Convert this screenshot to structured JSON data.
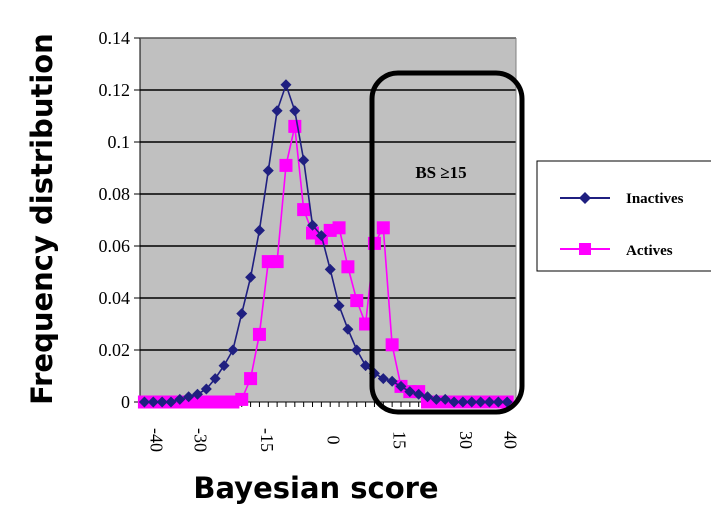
{
  "chart_data": {
    "type": "line",
    "xlabel": "Bayesian score",
    "ylabel": "Frequency distribution",
    "ylim": [
      0,
      0.14
    ],
    "xlim": [
      -41,
      44
    ],
    "yticks": [
      "0",
      "0.02",
      "0.04",
      "0.06",
      "0.08",
      "0.1",
      "0.12",
      "0.14"
    ],
    "ytick_values": [
      0,
      0.02,
      0.04,
      0.06,
      0.08,
      0.1,
      0.12,
      0.14
    ],
    "xticks": [
      "-40",
      "-30",
      "-15",
      "0",
      "15",
      "30",
      "40"
    ],
    "xtick_values": [
      -40,
      -30,
      -15,
      0,
      15,
      30,
      40
    ],
    "grid": "horizontal",
    "legend_position": "right",
    "plot_background": "#c0c0c0",
    "annotation": {
      "text": "BS ≥15",
      "x_range": [
        15,
        44
      ]
    },
    "series": [
      {
        "name": "Inactives",
        "color": "#1f1f80",
        "marker": "diamond",
        "x": [
          -40,
          -38,
          -36,
          -34,
          -32,
          -30,
          -28,
          -26,
          -24,
          -22,
          -20,
          -18,
          -16,
          -14,
          -12,
          -10,
          -8,
          -6,
          -4,
          -2,
          0,
          2,
          4,
          6,
          8,
          10,
          12,
          14,
          16,
          18,
          20,
          22,
          24,
          26,
          28,
          30,
          32,
          34,
          36,
          38,
          40,
          42
        ],
        "y": [
          0,
          0,
          0,
          0,
          0.001,
          0.002,
          0.003,
          0.005,
          0.009,
          0.014,
          0.02,
          0.034,
          0.048,
          0.066,
          0.089,
          0.112,
          0.122,
          0.112,
          0.093,
          0.068,
          0.064,
          0.051,
          0.037,
          0.028,
          0.02,
          0.014,
          0.011,
          0.009,
          0.008,
          0.006,
          0.004,
          0.003,
          0.002,
          0.001,
          0.001,
          0,
          0,
          0,
          0,
          0,
          0,
          0
        ]
      },
      {
        "name": "Actives",
        "color": "#ff00ff",
        "marker": "square",
        "x": [
          -40,
          -38,
          -36,
          -34,
          -32,
          -30,
          -28,
          -26,
          -24,
          -22,
          -20,
          -18,
          -16,
          -14,
          -12,
          -10,
          -8,
          -6,
          -4,
          -2,
          0,
          2,
          4,
          6,
          8,
          10,
          12,
          14,
          16,
          18,
          20,
          22,
          24,
          26,
          28,
          30,
          32,
          34,
          36,
          38,
          40,
          42
        ],
        "y": [
          0,
          0,
          0,
          0,
          0,
          0,
          0,
          0,
          0,
          0,
          0,
          0.001,
          0.009,
          0.026,
          0.054,
          0.054,
          0.091,
          0.106,
          0.074,
          0.065,
          0.063,
          0.066,
          0.067,
          0.052,
          0.039,
          0.03,
          0.061,
          0.067,
          0.022,
          0.006,
          0.004,
          0.004,
          0,
          0,
          0,
          0,
          0,
          0,
          0,
          0,
          0,
          0
        ]
      }
    ]
  }
}
